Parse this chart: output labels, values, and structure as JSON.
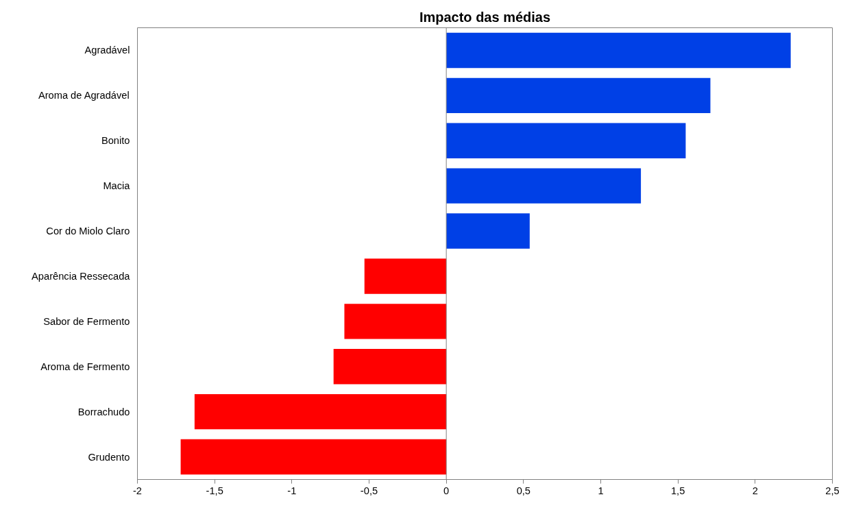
{
  "chart_data": {
    "type": "bar",
    "orientation": "horizontal",
    "title": "Impacto das médias",
    "categories": [
      "Agradável",
      "Aroma de Agradável",
      "Bonito",
      "Macia",
      "Cor do Miolo Claro",
      "Aparência Ressecada",
      "Sabor de Fermento",
      "Aroma de Fermento",
      "Borrachudo",
      "Grudento"
    ],
    "values": [
      2.23,
      1.71,
      1.55,
      1.26,
      0.54,
      -0.53,
      -0.66,
      -0.73,
      -1.63,
      -1.72
    ],
    "colors": [
      "#0040e6",
      "#0040e6",
      "#0040e6",
      "#0040e6",
      "#0040e6",
      "#ff0000",
      "#ff0000",
      "#ff0000",
      "#ff0000",
      "#ff0000"
    ],
    "xlim": [
      -2,
      2.5
    ],
    "xticks": [
      -2,
      {
        "value": -1.5,
        "label": "-1,5"
      },
      -1,
      {
        "value": -0.5,
        "label": "-0,5"
      },
      0,
      {
        "value": 0.5,
        "label": "0,5"
      },
      1,
      {
        "value": 1.5,
        "label": "1,5"
      },
      2,
      {
        "value": 2.5,
        "label": "2,5"
      }
    ],
    "tick_labels": "xy"
  }
}
